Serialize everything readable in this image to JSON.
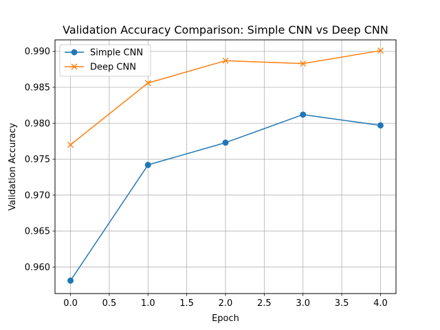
{
  "chart_data": {
    "type": "line",
    "title": "Validation Accuracy Comparison: Simple CNN vs Deep CNN",
    "xlabel": "Epoch",
    "ylabel": "Validation Accuracy",
    "x": [
      0,
      1,
      2,
      3,
      4
    ],
    "xlim": [
      -0.2,
      4.2
    ],
    "ylim": [
      0.9563,
      0.9916
    ],
    "xticks": [
      0.0,
      0.5,
      1.0,
      1.5,
      2.0,
      2.5,
      3.0,
      3.5,
      4.0
    ],
    "xtick_labels": [
      "0.0",
      "0.5",
      "1.0",
      "1.5",
      "2.0",
      "2.5",
      "3.0",
      "3.5",
      "4.0"
    ],
    "yticks": [
      0.96,
      0.965,
      0.97,
      0.975,
      0.98,
      0.985,
      0.99
    ],
    "ytick_labels": [
      "0.960",
      "0.965",
      "0.970",
      "0.975",
      "0.980",
      "0.985",
      "0.990"
    ],
    "grid": true,
    "legend_position": "top-left",
    "series": [
      {
        "name": "Simple CNN",
        "color": "#1f77b4",
        "marker": "circle",
        "values": [
          0.9581,
          0.9742,
          0.9773,
          0.9812,
          0.9797
        ]
      },
      {
        "name": "Deep CNN",
        "color": "#ff7f0e",
        "marker": "x",
        "values": [
          0.977,
          0.9856,
          0.9887,
          0.9883,
          0.9901
        ]
      }
    ]
  }
}
